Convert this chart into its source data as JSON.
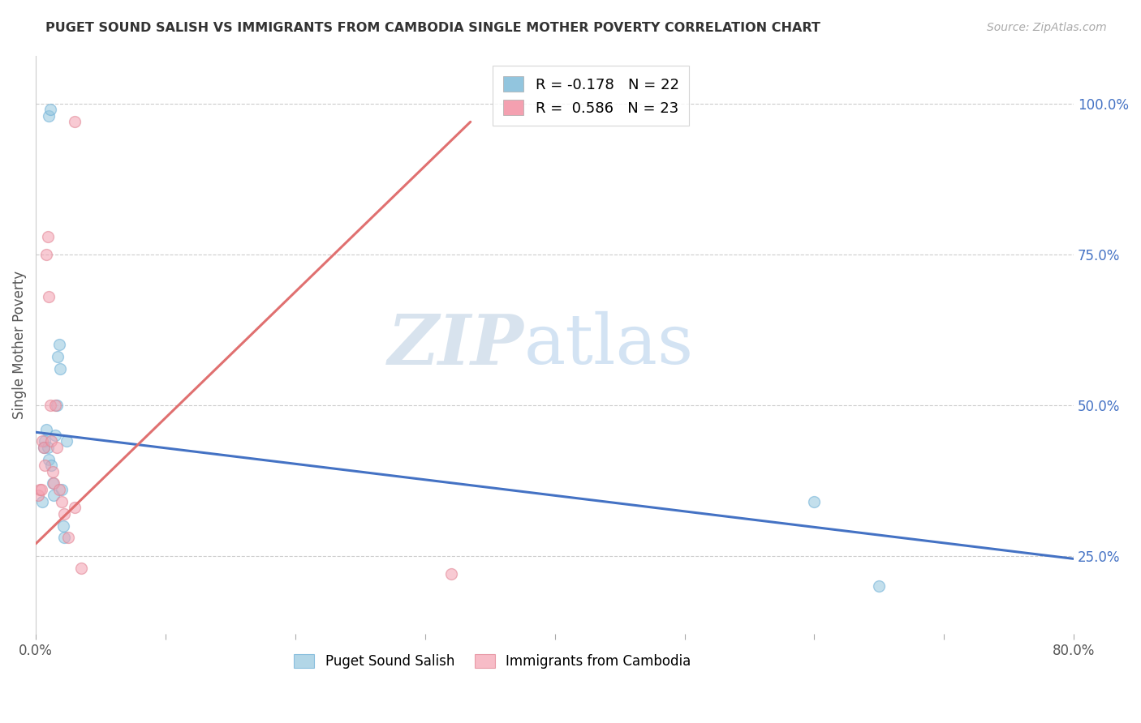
{
  "title": "PUGET SOUND SALISH VS IMMIGRANTS FROM CAMBODIA SINGLE MOTHER POVERTY CORRELATION CHART",
  "source": "Source: ZipAtlas.com",
  "ylabel": "Single Mother Poverty",
  "right_yticks": [
    "100.0%",
    "75.0%",
    "50.0%",
    "25.0%"
  ],
  "right_ytick_vals": [
    1.0,
    0.75,
    0.5,
    0.25
  ],
  "xlim": [
    0.0,
    0.8
  ],
  "ylim": [
    0.12,
    1.08
  ],
  "legend_label1": "R = -0.178   N = 22",
  "legend_label2": "R =  0.586   N = 23",
  "legend_color1": "#92c5de",
  "legend_color2": "#f4a0b0",
  "watermark_zip": "ZIP",
  "watermark_atlas": "atlas",
  "series1_x": [
    0.005,
    0.006,
    0.007,
    0.008,
    0.009,
    0.01,
    0.01,
    0.011,
    0.012,
    0.013,
    0.014,
    0.015,
    0.016,
    0.017,
    0.018,
    0.019,
    0.02,
    0.021,
    0.022,
    0.024,
    0.6,
    0.65
  ],
  "series1_y": [
    0.34,
    0.43,
    0.44,
    0.46,
    0.43,
    0.41,
    0.98,
    0.99,
    0.4,
    0.37,
    0.35,
    0.45,
    0.5,
    0.58,
    0.6,
    0.56,
    0.36,
    0.3,
    0.28,
    0.44,
    0.34,
    0.2
  ],
  "series2_x": [
    0.002,
    0.003,
    0.004,
    0.005,
    0.006,
    0.007,
    0.008,
    0.009,
    0.01,
    0.011,
    0.012,
    0.013,
    0.014,
    0.015,
    0.016,
    0.018,
    0.02,
    0.022,
    0.025,
    0.03,
    0.035,
    0.03,
    0.32
  ],
  "series2_y": [
    0.35,
    0.36,
    0.36,
    0.44,
    0.43,
    0.4,
    0.75,
    0.78,
    0.68,
    0.5,
    0.44,
    0.39,
    0.37,
    0.5,
    0.43,
    0.36,
    0.34,
    0.32,
    0.28,
    0.33,
    0.23,
    0.97,
    0.22
  ],
  "series1_color": "#92c5de",
  "series2_color": "#f4a0b0",
  "series1_edge": "#6aaed6",
  "series2_edge": "#e08090",
  "series1_linecolor": "#4472c4",
  "series2_linecolor": "#e07070",
  "dot_size": 100,
  "dot_alpha": 0.55,
  "bottom_legend1": "Puget Sound Salish",
  "bottom_legend2": "Immigrants from Cambodia",
  "line1_x0": 0.0,
  "line1_x1": 0.8,
  "line1_y0": 0.455,
  "line1_y1": 0.245,
  "line2_x0": 0.0,
  "line2_x1": 0.335,
  "line2_y0": 0.27,
  "line2_y1": 0.97
}
